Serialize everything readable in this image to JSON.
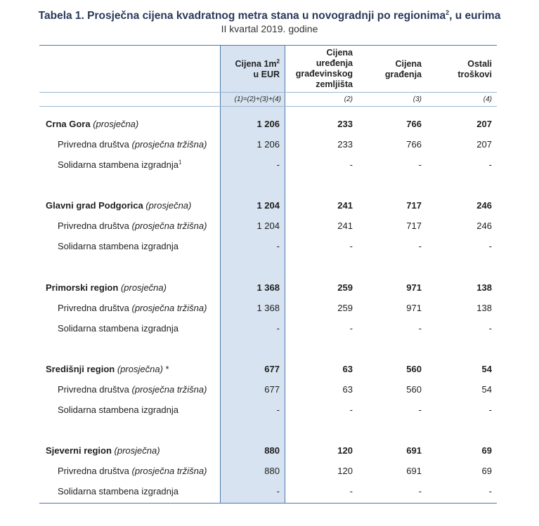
{
  "title": "Tabela 1. Prosječna cijena kvadratnog metra stana u novogradnji po regionima",
  "title_sup": "2",
  "title_suffix": ", u eurima",
  "subtitle": "II kvartal 2019. godine",
  "headers": {
    "col1_line1": "Cijena 1m",
    "col1_sup": "2",
    "col1_line2": "u EUR",
    "col2_line1": "Cijena",
    "col2_line2": "uređenja",
    "col2_line3": "građevinskog",
    "col2_line4": "zemljišta",
    "col3_line1": "Cijena",
    "col3_line2": "građenja",
    "col4_line1": "Ostali",
    "col4_line2": "troškovi"
  },
  "formulas": [
    "(1)=(2)+(3)+(4)",
    "(2)",
    "(3)",
    "(4)"
  ],
  "rows": [
    {
      "name": "Crna Gora",
      "qual": "(prosječna)",
      "suffix": "",
      "v": [
        "1 206",
        "233",
        "766",
        "207"
      ]
    },
    {
      "name": "Privredna društva",
      "qual": "(prosječna tržišna)",
      "v": [
        "1 206",
        "233",
        "766",
        "207"
      ]
    },
    {
      "name": "Solidarna stambena izgradnja",
      "sup": "1",
      "v": [
        "-",
        "-",
        "-",
        "-"
      ]
    },
    {
      "name": "Glavni grad Podgorica",
      "qual": "(prosječna)",
      "suffix": "",
      "v": [
        "1 204",
        "241",
        "717",
        "246"
      ]
    },
    {
      "name": "Privredna društva",
      "qual": "(prosječna tržišna)",
      "v": [
        "1 204",
        "241",
        "717",
        "246"
      ]
    },
    {
      "name": "Solidarna stambena izgradnja",
      "v": [
        "-",
        "-",
        "-",
        "-"
      ]
    },
    {
      "name": "Primorski region",
      "qual": "(prosječna)",
      "suffix": "",
      "v": [
        "1 368",
        "259",
        "971",
        "138"
      ]
    },
    {
      "name": "Privredna društva",
      "qual": "(prosječna tržišna)",
      "v": [
        "1 368",
        "259",
        "971",
        "138"
      ]
    },
    {
      "name": "Solidarna stambena izgradnja",
      "v": [
        "-",
        "-",
        "-",
        "-"
      ]
    },
    {
      "name": "Središnji region",
      "qual": "(prosječna)",
      "suffix": " *",
      "v": [
        "677",
        "63",
        "560",
        "54"
      ]
    },
    {
      "name": "Privredna društva",
      "qual": "(prosječna tržišna)",
      "v": [
        "677",
        "63",
        "560",
        "54"
      ]
    },
    {
      "name": "Solidarna stambena izgradnja",
      "v": [
        "-",
        "-",
        "-",
        "-"
      ]
    },
    {
      "name": "Sjeverni region",
      "qual": "(prosječna)",
      "suffix": "",
      "v": [
        "880",
        "120",
        "691",
        "69"
      ]
    },
    {
      "name": "Privredna društva",
      "qual": "(prosječna tržišna)",
      "v": [
        "880",
        "120",
        "691",
        "69"
      ]
    },
    {
      "name": "Solidarna stambena izgradnja",
      "v": [
        "-",
        "-",
        "-",
        "-"
      ]
    }
  ]
}
